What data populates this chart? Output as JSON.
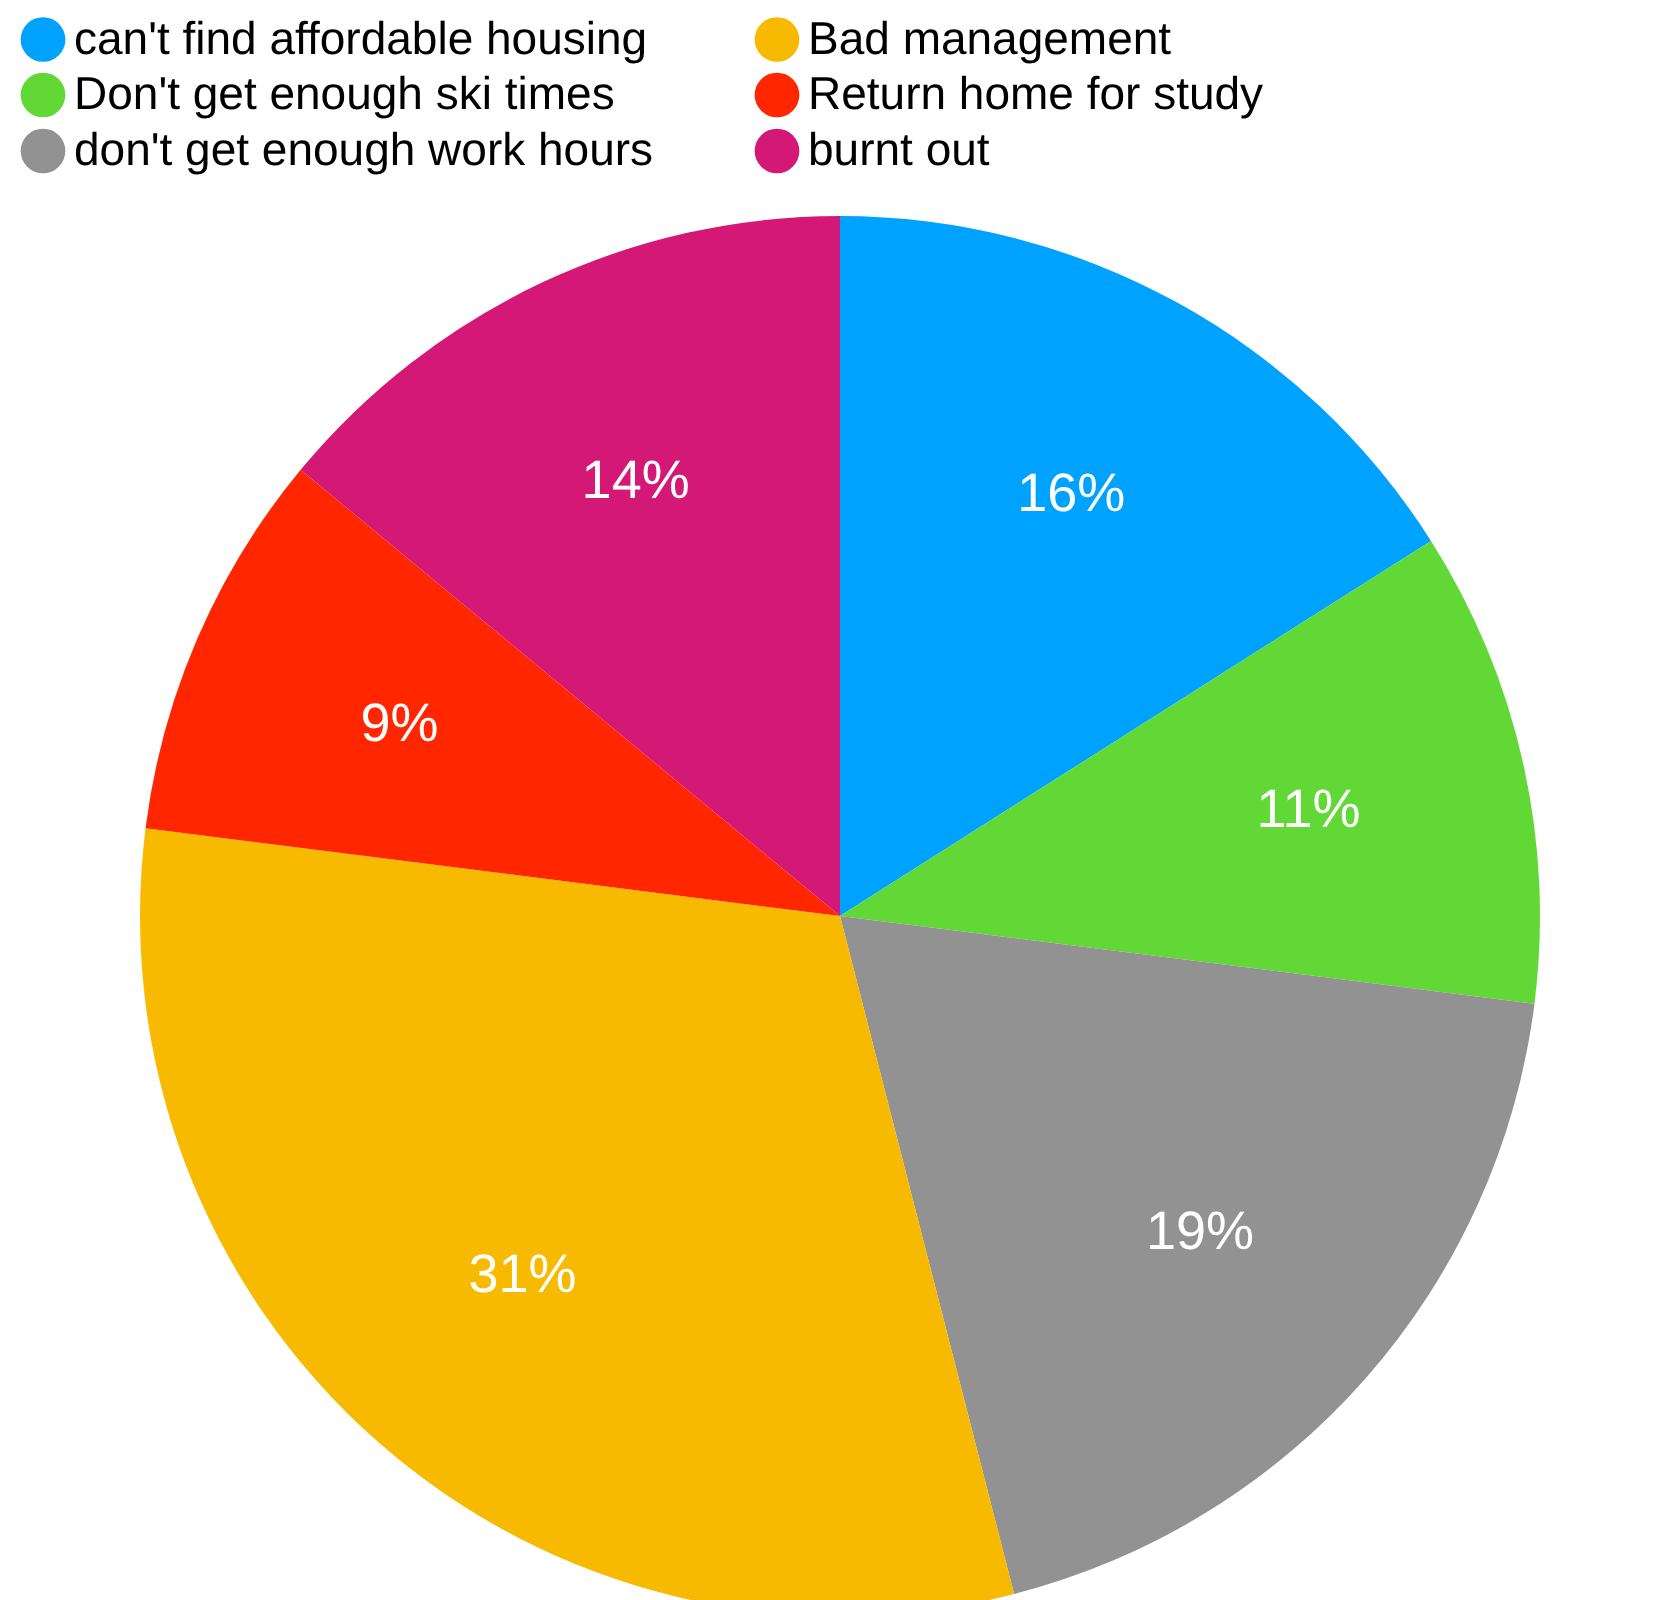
{
  "chart_data": {
    "type": "pie",
    "categories": [
      "can't find affordable housing",
      "Don't get enough ski times",
      "don't get enough work hours",
      "Bad management",
      "Return home for study",
      "burnt out"
    ],
    "values": [
      16,
      11,
      19,
      31,
      9,
      14
    ],
    "colors": [
      "#00a2ff",
      "#61d836",
      "#929292",
      "#f8ba00",
      "#ff2600",
      "#d31876"
    ],
    "value_labels": [
      "16%",
      "11%",
      "19%",
      "31%",
      "9%",
      "14%"
    ],
    "legend": "top"
  }
}
